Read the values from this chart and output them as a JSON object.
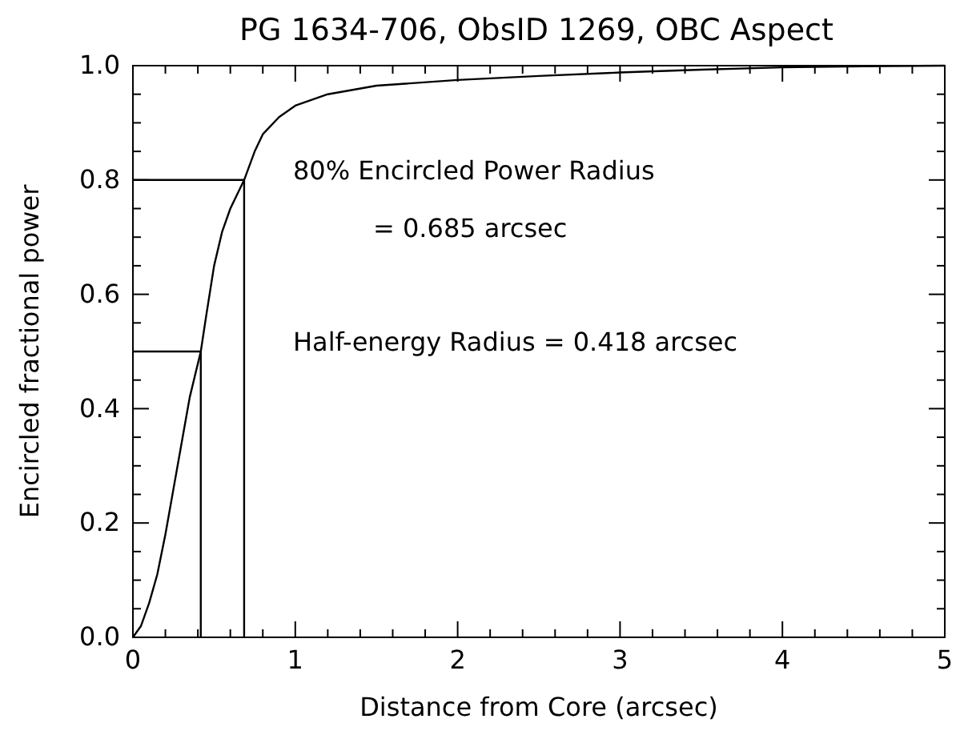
{
  "chart_data": {
    "type": "line",
    "title": "PG 1634-706, ObsID 1269, OBC Aspect",
    "xlabel": "Distance from Core (arcsec)",
    "ylabel": "Encircled fractional power",
    "xlim": [
      0,
      5
    ],
    "ylim": [
      0,
      1.0
    ],
    "xticks": [
      0,
      {
        "value": 0.2,
        "label": null
      },
      {
        "value": 0.4,
        "label": null
      },
      {
        "value": 0.6,
        "label": null
      },
      {
        "value": 0.8,
        "label": null
      },
      1,
      {
        "value": 1.2,
        "label": null
      },
      {
        "value": 1.4,
        "label": null
      },
      {
        "value": 1.6,
        "label": null
      },
      {
        "value": 1.8,
        "label": null
      },
      2,
      {
        "value": 2.2,
        "label": null
      },
      {
        "value": 2.4,
        "label": null
      },
      {
        "value": 2.6,
        "label": null
      },
      {
        "value": 2.8,
        "label": null
      },
      3,
      {
        "value": 3.2,
        "label": null
      },
      {
        "value": 3.4,
        "label": null
      },
      {
        "value": 3.6,
        "label": null
      },
      {
        "value": 3.8,
        "label": null
      },
      4,
      {
        "value": 4.2,
        "label": null
      },
      {
        "value": 4.4,
        "label": null
      },
      {
        "value": 4.6,
        "label": null
      },
      {
        "value": 4.8,
        "label": null
      },
      5
    ],
    "yticks": [
      {
        "value": 0,
        "label": "0.0"
      },
      {
        "value": 0.05,
        "label": null
      },
      {
        "value": 0.1,
        "label": null
      },
      {
        "value": 0.15,
        "label": null
      },
      {
        "value": 0.2,
        "label": "0.2"
      },
      {
        "value": 0.25,
        "label": null
      },
      {
        "value": 0.3,
        "label": null
      },
      {
        "value": 0.35,
        "label": null
      },
      {
        "value": 0.4,
        "label": "0.4"
      },
      {
        "value": 0.45,
        "label": null
      },
      {
        "value": 0.5,
        "label": null
      },
      {
        "value": 0.55,
        "label": null
      },
      {
        "value": 0.6,
        "label": "0.6"
      },
      {
        "value": 0.65,
        "label": null
      },
      {
        "value": 0.7,
        "label": null
      },
      {
        "value": 0.75,
        "label": null
      },
      {
        "value": 0.8,
        "label": "0.8"
      },
      {
        "value": 0.85,
        "label": null
      },
      {
        "value": 0.9,
        "label": null
      },
      {
        "value": 0.95,
        "label": null
      },
      {
        "value": 1.0,
        "label": "1.0"
      }
    ],
    "series": [
      {
        "color": "#000000",
        "x": [
          0,
          0.05,
          0.1,
          0.15,
          0.2,
          0.25,
          0.3,
          0.35,
          0.418,
          0.45,
          0.5,
          0.55,
          0.6,
          0.685,
          0.75,
          0.8,
          0.9,
          1.0,
          1.2,
          1.5,
          2,
          2.5,
          3,
          3.5,
          4,
          4.5,
          5
        ],
        "values": [
          0,
          0.02,
          0.06,
          0.11,
          0.18,
          0.26,
          0.34,
          0.42,
          0.5,
          0.56,
          0.65,
          0.71,
          0.75,
          0.8,
          0.85,
          0.88,
          0.91,
          0.93,
          0.95,
          0.965,
          0.975,
          0.982,
          0.988,
          0.993,
          0.997,
          0.999,
          1.0
        ]
      },
      {
        "color": "#000000",
        "x": [
          0,
          0.685,
          0.685
        ],
        "values": [
          0.8,
          0.8,
          0
        ]
      },
      {
        "color": "#000000",
        "x": [
          0,
          0.418,
          0.418
        ],
        "values": [
          0.5,
          0.5,
          0
        ]
      }
    ],
    "annotations": [
      "80% Encircled Power Radius",
      "= 0.685 arcsec",
      "Half-energy Radius = 0.418 arcsec"
    ],
    "grid": false,
    "marker": "none",
    "line_style": "solid"
  }
}
